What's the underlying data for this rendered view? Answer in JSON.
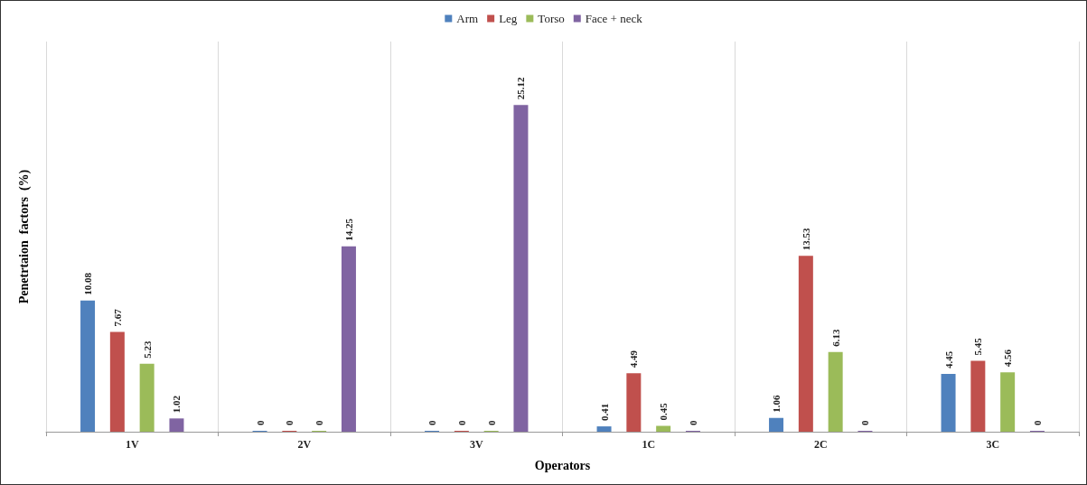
{
  "chart_data": {
    "type": "bar",
    "xlabel": "Operators",
    "ylabel": "Penetrtaion  factors  (%)",
    "categories": [
      "1V",
      "2V",
      "3V",
      "1C",
      "2C",
      "3C"
    ],
    "series": [
      {
        "name": "Arm",
        "color": "#4f81bd",
        "values": [
          10.08,
          0,
          0,
          0.41,
          1.06,
          4.45
        ]
      },
      {
        "name": "Leg",
        "color": "#c0504d",
        "values": [
          7.67,
          0,
          0,
          4.49,
          13.53,
          5.45
        ]
      },
      {
        "name": "Torso",
        "color": "#9bbb59",
        "values": [
          5.23,
          0,
          0,
          0.45,
          6.13,
          4.56
        ]
      },
      {
        "name": "Face + neck",
        "color": "#8064a2",
        "values": [
          1.02,
          14.25,
          25.12,
          0,
          0,
          0
        ]
      }
    ],
    "data_labels": true,
    "grid": "x",
    "legend": "top"
  }
}
